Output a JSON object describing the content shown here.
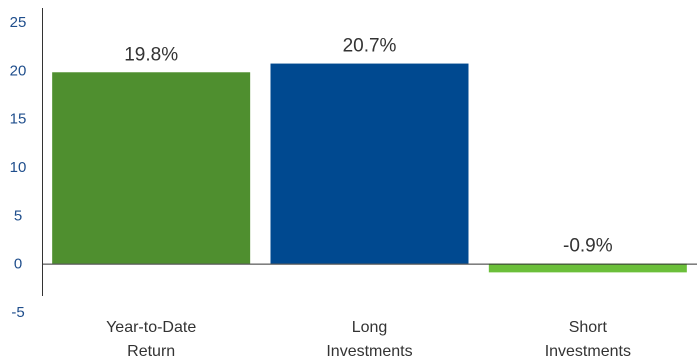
{
  "chart_data": {
    "type": "bar",
    "categories": [
      [
        "Year-to-Date",
        "Return"
      ],
      [
        "Long",
        "Investments"
      ],
      [
        "Short",
        "Investments"
      ]
    ],
    "values": [
      19.8,
      20.7,
      -0.9
    ],
    "data_labels": [
      "19.8%",
      "20.7%",
      "-0.9%"
    ],
    "bar_colors": [
      "#4f8f2f",
      "#004990",
      "#6bbf3a"
    ],
    "ylim": [
      -5,
      25
    ],
    "yticks": [
      -5,
      0,
      5,
      10,
      15,
      20,
      25
    ],
    "grid": false,
    "title": "",
    "xlabel": "",
    "ylabel": ""
  }
}
